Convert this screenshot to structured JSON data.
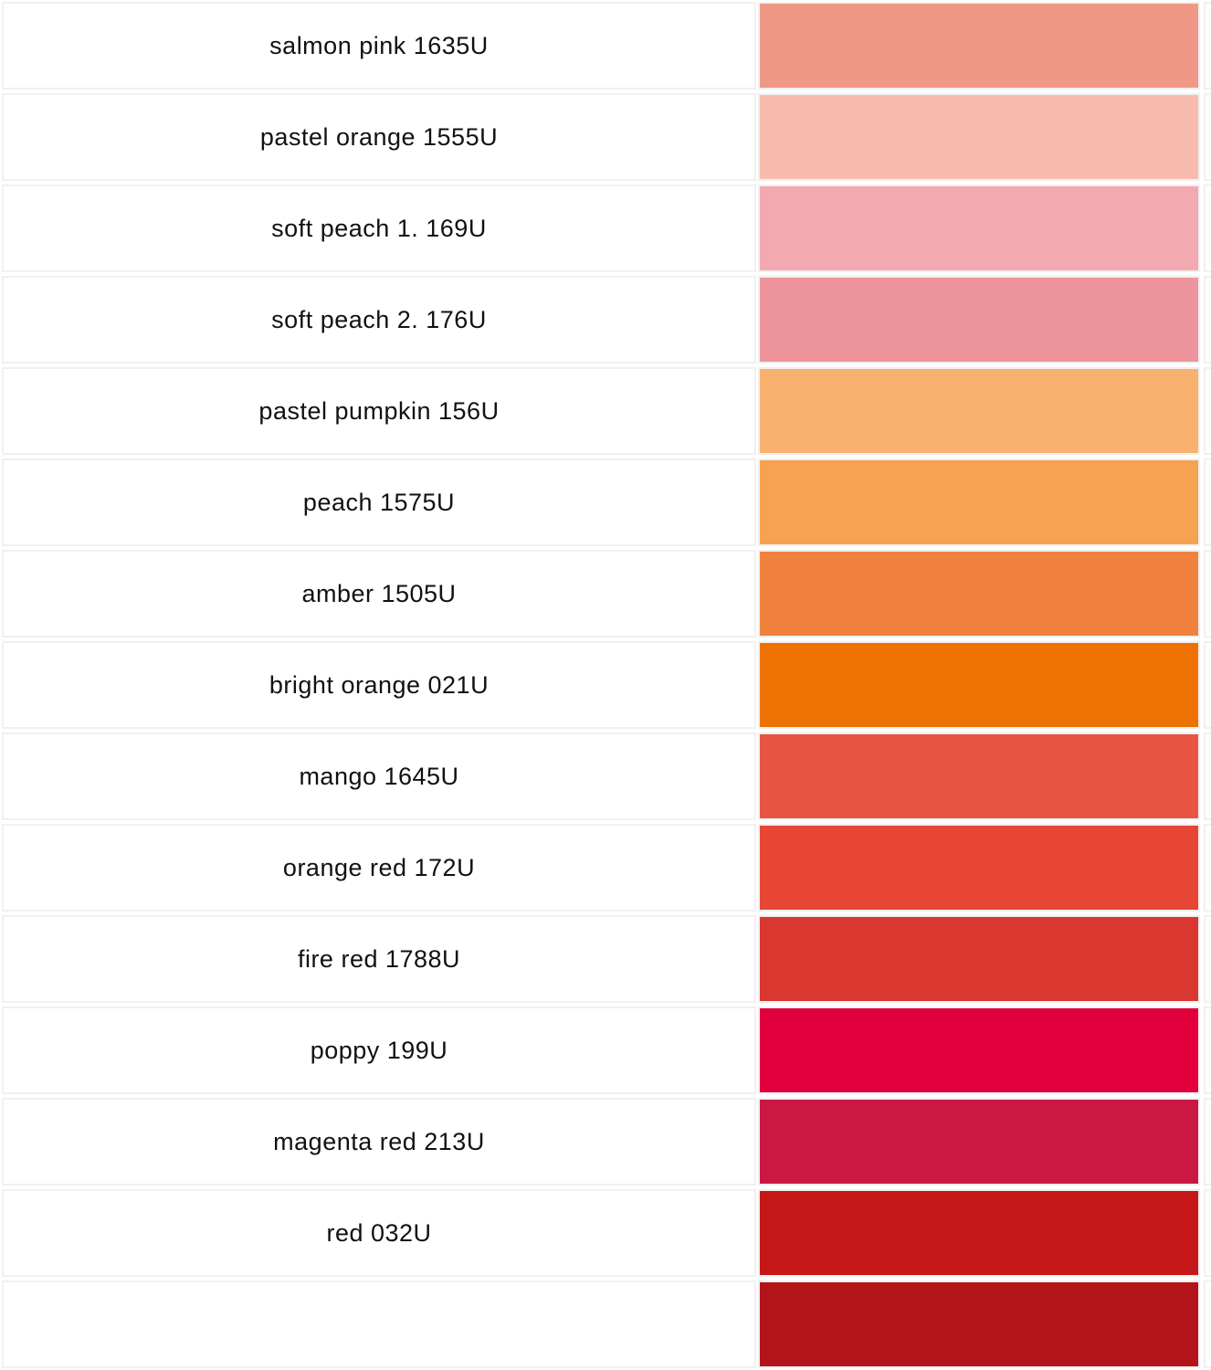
{
  "colors": [
    {
      "name": "salmon pink 1635U",
      "hex": "#f09886"
    },
    {
      "name": "pastel orange 1555U",
      "hex": "#f8bcae"
    },
    {
      "name": "soft peach 1. 169U",
      "hex": "#f3a9b0"
    },
    {
      "name": "soft peach 2. 176U",
      "hex": "#ee949d"
    },
    {
      "name": "pastel pumpkin 156U",
      "hex": "#f8b16e"
    },
    {
      "name": "peach 1575U",
      "hex": "#f6a250"
    },
    {
      "name": "amber 1505U",
      "hex": "#f0823e"
    },
    {
      "name": "bright orange 021U",
      "hex": "#ee7203"
    },
    {
      "name": "mango 1645U",
      "hex": "#e95545"
    },
    {
      "name": "orange red 172U",
      "hex": "#e84634"
    },
    {
      "name": "fire red 1788U",
      "hex": "#da3731"
    },
    {
      "name": "poppy 199U",
      "hex": "#e1003c"
    },
    {
      "name": "magenta red 213U",
      "hex": "#cb1842"
    },
    {
      "name": "red 032U",
      "hex": "#c51618"
    },
    {
      "name": "",
      "hex": "#b31419"
    }
  ]
}
